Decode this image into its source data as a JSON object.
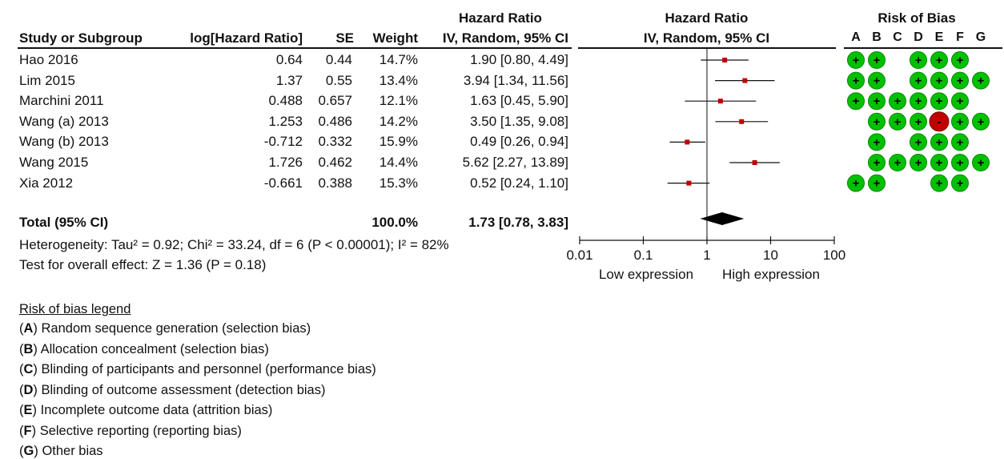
{
  "headers": {
    "study": "Study or Subgroup",
    "loghr": "log[Hazard Ratio]",
    "se": "SE",
    "weight": "Weight",
    "hr_top": "Hazard Ratio",
    "hr_sub": "IV, Random, 95% CI",
    "plot_top": "Hazard Ratio",
    "plot_sub": "IV, Random, 95% CI",
    "rob_title": "Risk of Bias",
    "rob_cols": [
      "A",
      "B",
      "C",
      "D",
      "E",
      "F",
      "G"
    ]
  },
  "rows": [
    {
      "study": "Hao 2016",
      "loghr": "0.64",
      "se": "0.44",
      "weight": "14.7%",
      "ci": "1.90 [0.80, 4.49]"
    },
    {
      "study": "Lim 2015",
      "loghr": "1.37",
      "se": "0.55",
      "weight": "13.4%",
      "ci": "3.94 [1.34, 11.56]"
    },
    {
      "study": "Marchini 2011",
      "loghr": "0.488",
      "se": "0.657",
      "weight": "12.1%",
      "ci": "1.63 [0.45, 5.90]"
    },
    {
      "study": "Wang (a) 2013",
      "loghr": "1.253",
      "se": "0.486",
      "weight": "14.2%",
      "ci": "3.50 [1.35, 9.08]"
    },
    {
      "study": "Wang (b) 2013",
      "loghr": "-0.712",
      "se": "0.332",
      "weight": "15.9%",
      "ci": "0.49 [0.26, 0.94]"
    },
    {
      "study": "Wang 2015",
      "loghr": "1.726",
      "se": "0.462",
      "weight": "14.4%",
      "ci": "5.62 [2.27, 13.89]"
    },
    {
      "study": "Xia 2012",
      "loghr": "-0.661",
      "se": "0.388",
      "weight": "15.3%",
      "ci": "0.52 [0.24, 1.10]"
    }
  ],
  "total": {
    "label": "Total (95% CI)",
    "weight": "100.0%",
    "ci": "1.73 [0.78, 3.83]"
  },
  "heterogeneity": "Heterogeneity: Tau² = 0.92; Chi² = 33.24, df = 6 (P < 0.00001); I² = 82%",
  "overall_effect": "Test for overall effect: Z = 1.36 (P = 0.18)",
  "legend": {
    "title": "Risk of bias legend",
    "items": [
      {
        "key": "A",
        "text": "Random sequence generation (selection bias)"
      },
      {
        "key": "B",
        "text": "Allocation concealment (selection bias)"
      },
      {
        "key": "C",
        "text": "Blinding of participants and personnel (performance bias)"
      },
      {
        "key": "D",
        "text": "Blinding of outcome assessment (detection bias)"
      },
      {
        "key": "E",
        "text": "Incomplete outcome data (attrition bias)"
      },
      {
        "key": "F",
        "text": "Selective reporting (reporting bias)"
      },
      {
        "key": "G",
        "text": "Other bias"
      }
    ]
  },
  "colors": {
    "low_risk": "#00c000",
    "high_risk": "#c00000",
    "marker": "#c00000",
    "ink": "#111111"
  },
  "chart_data": {
    "type": "forest",
    "scale": "log",
    "xlim": [
      0.01,
      100
    ],
    "ticks": [
      0.01,
      0.1,
      1,
      10,
      100
    ],
    "tick_labels": [
      "0.01",
      "0.1",
      "1",
      "10",
      "100"
    ],
    "left_label": "Low expression",
    "right_label": "High expression",
    "studies": [
      {
        "hr": 1.9,
        "lo": 0.8,
        "hi": 4.49
      },
      {
        "hr": 3.94,
        "lo": 1.34,
        "hi": 11.56
      },
      {
        "hr": 1.63,
        "lo": 0.45,
        "hi": 5.9
      },
      {
        "hr": 3.5,
        "lo": 1.35,
        "hi": 9.08
      },
      {
        "hr": 0.49,
        "lo": 0.26,
        "hi": 0.94
      },
      {
        "hr": 5.62,
        "lo": 2.27,
        "hi": 13.89
      },
      {
        "hr": 0.52,
        "lo": 0.24,
        "hi": 1.1
      }
    ],
    "pooled": {
      "hr": 1.73,
      "lo": 0.78,
      "hi": 3.83
    },
    "risk_of_bias": [
      [
        "+",
        "+",
        "",
        "+",
        "+",
        "+",
        ""
      ],
      [
        "+",
        "+",
        "",
        "+",
        "+",
        "+",
        "+"
      ],
      [
        "+",
        "+",
        "+",
        "+",
        "+",
        "+",
        ""
      ],
      [
        "",
        "+",
        "+",
        "+",
        "-",
        "+",
        "+"
      ],
      [
        "",
        "+",
        "",
        "+",
        "+",
        "+",
        ""
      ],
      [
        "",
        "+",
        "+",
        "+",
        "+",
        "+",
        "+"
      ],
      [
        "+",
        "+",
        "",
        "",
        "+",
        "+",
        ""
      ]
    ]
  }
}
